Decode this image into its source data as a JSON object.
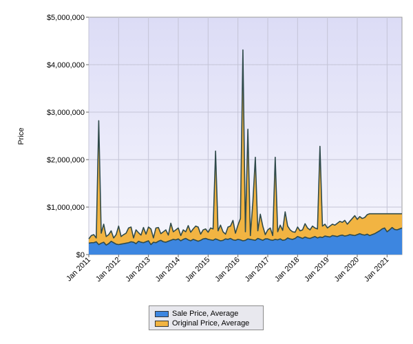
{
  "chart_data": {
    "type": "area",
    "title": "",
    "xlabel": "",
    "ylabel": "Price",
    "ylim": [
      0,
      5000000
    ],
    "xlim": [
      "2011-01",
      "2021-07"
    ],
    "grid": true,
    "legend_position": "bottom",
    "y_ticks": [
      "$0",
      "$1,000,000",
      "$2,000,000",
      "$3,000,000",
      "$4,000,000",
      "$5,000,000"
    ],
    "y_tick_values": [
      0,
      1000000,
      2000000,
      3000000,
      4000000,
      5000000
    ],
    "x_ticks": [
      "Jan 2011",
      "Jan 2012",
      "Jan 2013",
      "Jan 2014",
      "Jan 2015",
      "Jan 2016",
      "Jan 2017",
      "Jan 2018",
      "Jan 2019",
      "Jan 2020",
      "Jan 2021"
    ],
    "x_tick_dates": [
      "2011-01",
      "2012-01",
      "2013-01",
      "2014-01",
      "2015-01",
      "2016-01",
      "2017-01",
      "2018-01",
      "2019-01",
      "2020-01",
      "2021-01"
    ],
    "x": [
      "2011-01",
      "2011-02",
      "2011-03",
      "2011-04",
      "2011-05",
      "2011-06",
      "2011-07",
      "2011-08",
      "2011-09",
      "2011-10",
      "2011-11",
      "2011-12",
      "2012-01",
      "2012-02",
      "2012-03",
      "2012-04",
      "2012-05",
      "2012-06",
      "2012-07",
      "2012-08",
      "2012-09",
      "2012-10",
      "2012-11",
      "2012-12",
      "2013-01",
      "2013-02",
      "2013-03",
      "2013-04",
      "2013-05",
      "2013-06",
      "2013-07",
      "2013-08",
      "2013-09",
      "2013-10",
      "2013-11",
      "2013-12",
      "2014-01",
      "2014-02",
      "2014-03",
      "2014-04",
      "2014-05",
      "2014-06",
      "2014-07",
      "2014-08",
      "2014-09",
      "2014-10",
      "2014-11",
      "2014-12",
      "2015-01",
      "2015-02",
      "2015-03",
      "2015-04",
      "2015-05",
      "2015-06",
      "2015-07",
      "2015-08",
      "2015-09",
      "2015-10",
      "2015-11",
      "2015-12",
      "2016-01",
      "2016-02",
      "2016-03",
      "2016-04",
      "2016-05",
      "2016-06",
      "2016-07",
      "2016-08",
      "2016-09",
      "2016-10",
      "2016-11",
      "2016-12",
      "2017-01",
      "2017-02",
      "2017-03",
      "2017-04",
      "2017-05",
      "2017-06",
      "2017-07",
      "2017-08",
      "2017-09",
      "2017-10",
      "2017-11",
      "2017-12",
      "2018-01",
      "2018-02",
      "2018-03",
      "2018-04",
      "2018-05",
      "2018-06",
      "2018-07",
      "2018-08",
      "2018-09",
      "2018-10",
      "2018-11",
      "2018-12",
      "2019-01",
      "2019-02",
      "2019-03",
      "2019-04",
      "2019-05",
      "2019-06",
      "2019-07",
      "2019-08",
      "2019-09",
      "2019-10",
      "2019-11",
      "2019-12",
      "2020-01",
      "2020-02",
      "2020-03",
      "2020-04",
      "2020-05",
      "2020-06",
      "2020-07",
      "2020-08",
      "2020-09",
      "2020-10",
      "2020-11",
      "2020-12",
      "2021-01",
      "2021-02",
      "2021-03",
      "2021-04",
      "2021-05",
      "2021-06",
      "2021-07"
    ],
    "series": [
      {
        "name": "Sale Price, Average",
        "color": "#3d86e0",
        "values": [
          240000,
          250000,
          250000,
          270000,
          210000,
          240000,
          260000,
          200000,
          230000,
          280000,
          250000,
          220000,
          210000,
          220000,
          230000,
          240000,
          250000,
          270000,
          260000,
          230000,
          280000,
          260000,
          250000,
          270000,
          290000,
          210000,
          260000,
          250000,
          280000,
          300000,
          270000,
          260000,
          280000,
          300000,
          320000,
          310000,
          330000,
          290000,
          320000,
          340000,
          310000,
          290000,
          320000,
          300000,
          280000,
          300000,
          330000,
          340000,
          320000,
          310000,
          300000,
          330000,
          310000,
          290000,
          300000,
          330000,
          320000,
          340000,
          310000,
          300000,
          320000,
          310000,
          290000,
          300000,
          330000,
          320000,
          310000,
          300000,
          340000,
          320000,
          300000,
          330000,
          330000,
          310000,
          300000,
          320000,
          310000,
          330000,
          300000,
          310000,
          350000,
          330000,
          320000,
          340000,
          380000,
          360000,
          340000,
          370000,
          350000,
          340000,
          360000,
          380000,
          350000,
          370000,
          360000,
          390000,
          380000,
          370000,
          400000,
          390000,
          380000,
          400000,
          410000,
          390000,
          400000,
          420000,
          410000,
          400000,
          420000,
          440000,
          420000,
          410000,
          430000,
          400000,
          420000,
          440000,
          470000,
          500000,
          540000,
          560000,
          480000,
          520000,
          570000,
          530000,
          520000,
          540000,
          560000
        ]
      },
      {
        "name": "Original Price, Average",
        "color": "#f2b442",
        "values": [
          330000,
          400000,
          420000,
          350000,
          2820000,
          450000,
          640000,
          380000,
          420000,
          500000,
          350000,
          420000,
          600000,
          380000,
          420000,
          450000,
          560000,
          580000,
          350000,
          520000,
          460000,
          410000,
          570000,
          430000,
          580000,
          540000,
          350000,
          560000,
          570000,
          440000,
          480000,
          520000,
          410000,
          660000,
          480000,
          520000,
          560000,
          400000,
          520000,
          480000,
          610000,
          470000,
          540000,
          600000,
          580000,
          430000,
          520000,
          540000,
          470000,
          560000,
          540000,
          2180000,
          500000,
          620000,
          480000,
          430000,
          580000,
          600000,
          720000,
          450000,
          620000,
          760000,
          4310000,
          480000,
          2640000,
          400000,
          1100000,
          2050000,
          500000,
          850000,
          600000,
          420000,
          520000,
          560000,
          400000,
          2050000,
          480000,
          620000,
          510000,
          900000,
          600000,
          520000,
          480000,
          470000,
          580000,
          500000,
          520000,
          650000,
          560000,
          520000,
          600000,
          560000,
          540000,
          2280000,
          600000,
          640000,
          560000,
          600000,
          640000,
          620000,
          660000,
          700000,
          680000,
          720000,
          640000,
          700000,
          760000,
          820000,
          740000,
          800000,
          760000,
          780000,
          840000,
          860000,
          860000,
          860000,
          860000,
          860000,
          860000,
          860000,
          860000,
          860000,
          860000,
          860000,
          860000,
          860000,
          860000
        ]
      }
    ]
  }
}
